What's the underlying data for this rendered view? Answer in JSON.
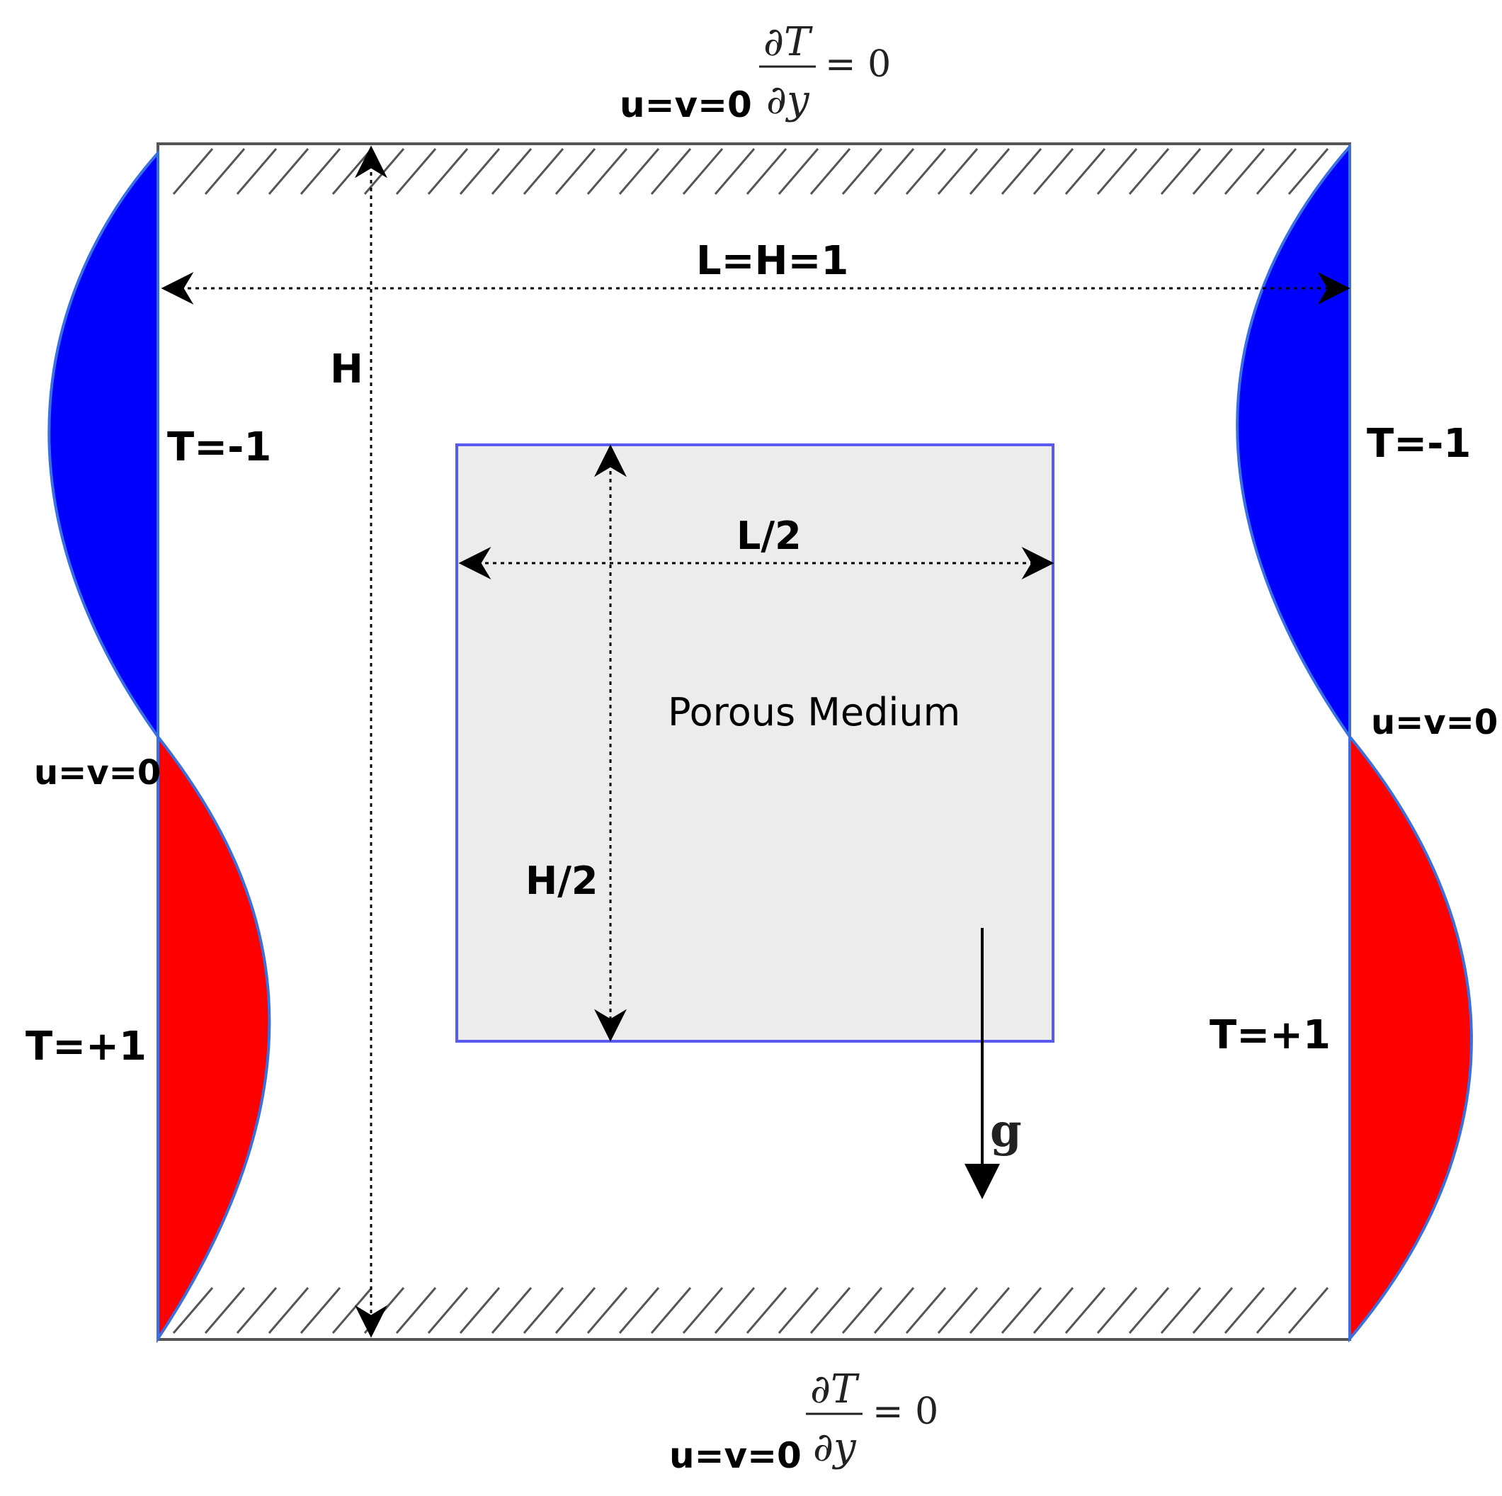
{
  "labels": {
    "top_bc_velocity": "u=v=0",
    "bottom_bc_velocity": "u=v=0",
    "left_bc_velocity": "u=v=0",
    "right_bc_velocity": "u=v=0",
    "width_dim": "L=H=1",
    "height_dim": "H",
    "left_cold_temp": "T=-1",
    "right_cold_temp": "T=-1",
    "left_hot_temp": "T=+1",
    "right_hot_temp": "T=+1",
    "porous_medium": "Porous Medium",
    "inner_width_dim": "L/2",
    "inner_height_dim": "H/2",
    "gravity": "g"
  },
  "adiabatic_bc": {
    "numerator": "∂T",
    "denominator": "∂y",
    "rhs": "= 0"
  },
  "colors": {
    "hot_profile": "#ff0000",
    "cold_profile": "#0000ff",
    "profile_outline": "#3a6fe0",
    "porous_fill": "#ececec",
    "porous_border": "#5a5af0",
    "wall": "#555555"
  }
}
